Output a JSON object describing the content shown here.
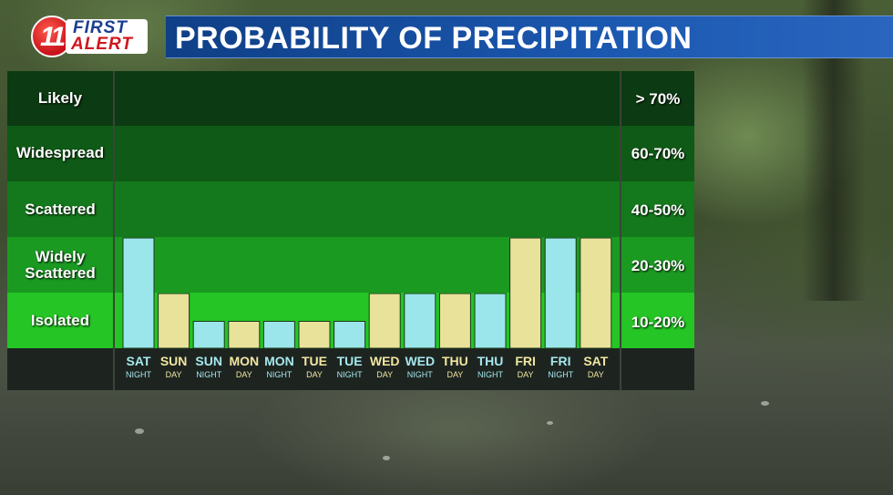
{
  "header": {
    "logo_number": "11",
    "logo_first": "FIRST",
    "logo_alert": "ALERT",
    "title": "PROBABILITY OF PRECIPITATION"
  },
  "chart_data": {
    "type": "bar",
    "categories": [
      {
        "day": "SAT",
        "period": "NIGHT"
      },
      {
        "day": "SUN",
        "period": "DAY"
      },
      {
        "day": "SUN",
        "period": "NIGHT"
      },
      {
        "day": "MON",
        "period": "DAY"
      },
      {
        "day": "MON",
        "period": "NIGHT"
      },
      {
        "day": "TUE",
        "period": "DAY"
      },
      {
        "day": "TUE",
        "period": "NIGHT"
      },
      {
        "day": "WED",
        "period": "DAY"
      },
      {
        "day": "WED",
        "period": "NIGHT"
      },
      {
        "day": "THU",
        "period": "DAY"
      },
      {
        "day": "THU",
        "period": "NIGHT"
      },
      {
        "day": "FRI",
        "period": "DAY"
      },
      {
        "day": "FRI",
        "period": "NIGHT"
      },
      {
        "day": "SAT",
        "period": "DAY"
      }
    ],
    "values": [
      20,
      10,
      5,
      5,
      5,
      5,
      5,
      10,
      10,
      10,
      10,
      20,
      20,
      20
    ],
    "unit": "%",
    "ylim": [
      0,
      100
    ],
    "bands": [
      {
        "name": "Likely",
        "range": "> 70%"
      },
      {
        "name": "Widespread",
        "range": "60-70%"
      },
      {
        "name": "Scattered",
        "range": "40-50%"
      },
      {
        "name": "Widely Scattered",
        "range": "20-30%"
      },
      {
        "name": "Isolated",
        "range": "10-20%"
      }
    ],
    "colors": {
      "day": "#e9e29a",
      "night": "#9be6ea",
      "day_text": "#f2e6a0",
      "night_text": "#a6e8ee"
    },
    "grid": false,
    "legend": "none"
  }
}
